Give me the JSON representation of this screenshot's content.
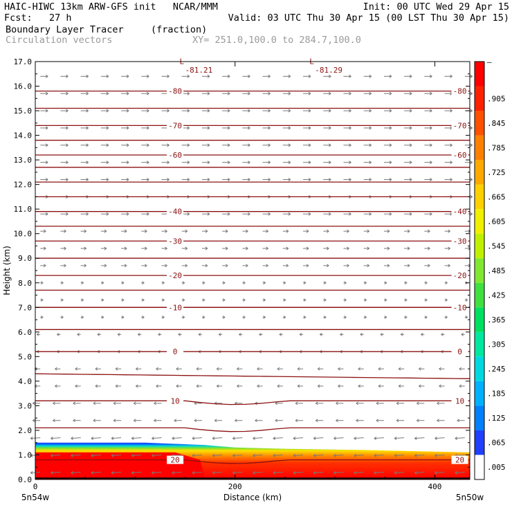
{
  "header": {
    "left1": "HAIC-HIWC 13km ARW-GFS init   NCAR/MMM",
    "left2": "Fcst:   27 h",
    "right1": "Init: 00 UTC Wed 29 Apr 15",
    "right2": "Valid: 03 UTC Thu 30 Apr 15 (00 LST Thu 30 Apr 15)",
    "field1_name": "Boundary Layer Tracer",
    "field1_units": "(fraction)",
    "field2_name": "Circulation vectors",
    "xy_label": "XY= 251.0,100.0 to 284.7,100.0"
  },
  "colors": {
    "contour": "#8b1010",
    "vector": "#787878",
    "frame": "#000000"
  },
  "chart_data": {
    "type": "cross-section",
    "xlabel": "Distance (km)",
    "ylabel": "Height (km)",
    "xlim": [
      0,
      435
    ],
    "ylim": [
      0,
      17
    ],
    "x_ticks": [
      0,
      200,
      400
    ],
    "y_ticks": [
      "0.0",
      "1.0",
      "2.0",
      "3.0",
      "4.0",
      "5.0",
      "6.0",
      "7.0",
      "8.0",
      "9.0",
      "10.0",
      "11.0",
      "12.0",
      "13.0",
      "14.0",
      "15.0",
      "16.0",
      "17.0"
    ],
    "x_endpoint_labels": [
      "5n54w",
      "5n50w"
    ],
    "colorbar": {
      "labels": [
        ".005",
        ".065",
        ".125",
        ".185",
        ".245",
        ".305",
        ".365",
        ".425",
        ".485",
        ".545",
        ".605",
        ".665",
        ".725",
        ".785",
        ".845",
        ".905",
        "–"
      ],
      "colors": [
        "#ffffff",
        "#2040ff",
        "#0080ff",
        "#00b0ff",
        "#00d8e0",
        "#00e8a0",
        "#00e060",
        "#40e040",
        "#80e830",
        "#c0f000",
        "#f0f000",
        "#ffd000",
        "#ffa800",
        "#ff8000",
        "#ff5000",
        "#ff2000",
        "#ff0000"
      ]
    },
    "contours": [
      {
        "level": "20",
        "y": 0.8
      },
      {
        "level": "",
        "y": 2.1
      },
      {
        "level": "10",
        "y": 3.2
      },
      {
        "level": "",
        "y": 4.3
      },
      {
        "level": "0",
        "y": 5.2
      },
      {
        "level": "",
        "y": 6.1
      },
      {
        "level": "",
        "y": 7.0
      },
      {
        "level": "-10",
        "y": 7.0
      },
      {
        "level": "",
        "y": 7.7
      },
      {
        "level": "-20",
        "y": 8.3
      },
      {
        "level": "",
        "y": 9.0
      },
      {
        "level": "-30",
        "y": 9.7
      },
      {
        "level": "",
        "y": 10.3
      },
      {
        "level": "-40",
        "y": 10.9
      },
      {
        "level": "",
        "y": 11.5
      },
      {
        "level": "",
        "y": 12.1
      },
      {
        "level": "",
        "y": 12.7
      },
      {
        "level": "-60",
        "y": 13.2
      },
      {
        "level": "",
        "y": 13.8
      },
      {
        "level": "-70",
        "y": 14.4
      },
      {
        "level": "",
        "y": 15.1
      },
      {
        "level": "-80",
        "y": 15.8
      }
    ],
    "lows": [
      {
        "label": "L",
        "value": "-81.21",
        "x": 150
      },
      {
        "label": "L",
        "value": "-81.29",
        "x": 280
      }
    ]
  }
}
